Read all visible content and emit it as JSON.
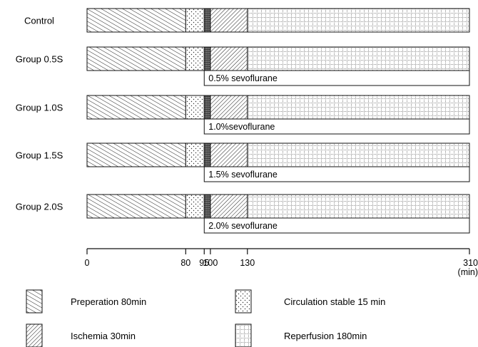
{
  "groups": [
    {
      "label": "Control",
      "sevoflurane": ""
    },
    {
      "label": "Group 0.5S",
      "sevoflurane": "0.5% sevoflurane"
    },
    {
      "label": "Group 1.0S",
      "sevoflurane": "1.0%sevoflurane"
    },
    {
      "label": "Group 1.5S",
      "sevoflurane": "1.5% sevoflurane"
    },
    {
      "label": "Group 2.0S",
      "sevoflurane": "2.0% sevoflurane"
    }
  ],
  "phases": [
    {
      "key": "preparation",
      "start": 0,
      "end": 80,
      "pattern": "diag-dense"
    },
    {
      "key": "circulation",
      "start": 80,
      "end": 95,
      "pattern": "dots"
    },
    {
      "key": "drug",
      "start": 95,
      "end": 100,
      "pattern": "dark-grid"
    },
    {
      "key": "ischemia",
      "start": 100,
      "end": 130,
      "pattern": "diag-back"
    },
    {
      "key": "reperfusion",
      "start": 130,
      "end": 310,
      "pattern": "dot-grid"
    }
  ],
  "sevoflurane_window": {
    "start": 95,
    "end": 310
  },
  "axis": {
    "ticks": [
      {
        "value": 0,
        "label": "0"
      },
      {
        "value": 80,
        "label": "80"
      },
      {
        "value": 95,
        "label": "95"
      },
      {
        "value": 100,
        "label": "100"
      },
      {
        "value": 130,
        "label": "130"
      },
      {
        "value": 310,
        "label": "310"
      }
    ],
    "unit": "(min)",
    "range": [
      0,
      310
    ]
  },
  "legend": [
    {
      "label": "Preperation 80min",
      "pattern": "diag-dense"
    },
    {
      "label": "Circulation stable 15 min",
      "pattern": "dots"
    },
    {
      "label": "Ischemia 30min",
      "pattern": "diag-back"
    },
    {
      "label": "Reperfusion 180min",
      "pattern": "dot-grid"
    }
  ]
}
